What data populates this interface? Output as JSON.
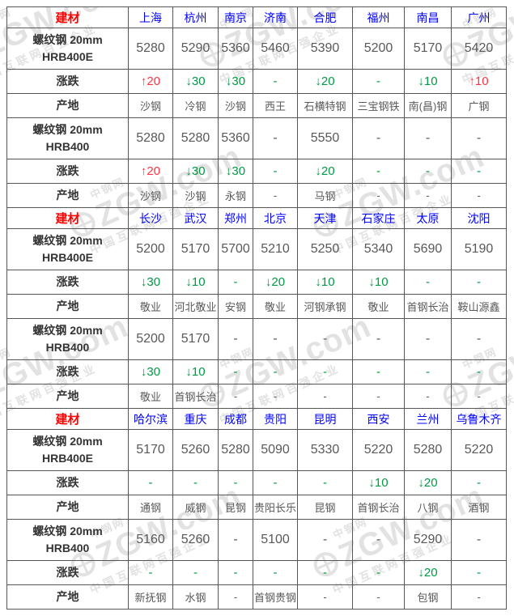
{
  "watermark": {
    "brand": "ZGW.com",
    "site": "中钢网",
    "slogan": "中国互联网百强企业"
  },
  "colors": {
    "up_change": "#ff3344",
    "down_change": "#009944",
    "city_header": "#0000ff",
    "material_header": "#ff0000",
    "value_text": "#595959",
    "border": "#565656"
  },
  "chart_data": {
    "type": "table",
    "material_column_header": "建材",
    "sections": [
      {
        "material_label": "建材",
        "cities": [
          "上海",
          "杭州",
          "南京",
          "济南",
          "合肥",
          "福州",
          "南昌",
          "广州"
        ],
        "rows": [
          {
            "label": "螺纹钢 20mm\nHRB400E",
            "type": "price",
            "values": [
              "5280",
              "5290",
              "5360",
              "5460",
              "5390",
              "5200",
              "5170",
              "5420"
            ]
          },
          {
            "label": "涨跌",
            "type": "change",
            "values": [
              "↑20",
              "↓30",
              "↓30",
              "-",
              "↓20",
              "-",
              "↓10",
              "↑10"
            ]
          },
          {
            "label": "产地",
            "type": "origin",
            "values": [
              "沙钢",
              "冷钢",
              "沙钢",
              "西王",
              "石横特钢",
              "三宝钢铁",
              "南(昌)钢",
              "广钢"
            ]
          },
          {
            "label": "螺纹钢 20mm\nHRB400",
            "type": "price",
            "values": [
              "5280",
              "5280",
              "5360",
              "-",
              "5550",
              "-",
              "-",
              "-"
            ]
          },
          {
            "label": "涨跌",
            "type": "change",
            "values": [
              "↑20",
              "↓30",
              "↓30",
              "-",
              "↓20",
              "-",
              "-",
              "-"
            ]
          },
          {
            "label": "产地",
            "type": "origin",
            "values": [
              "沙钢",
              "沙钢",
              "永钢",
              "-",
              "马钢",
              "-",
              "-",
              "-"
            ]
          }
        ]
      },
      {
        "material_label": "建材",
        "cities": [
          "长沙",
          "武汉",
          "郑州",
          "北京",
          "天津",
          "石家庄",
          "太原",
          "沈阳"
        ],
        "rows": [
          {
            "label": "螺纹钢 20mm\nHRB400E",
            "type": "price",
            "values": [
              "5200",
              "5170",
              "5700",
              "5210",
              "5250",
              "5340",
              "5690",
              "5190"
            ]
          },
          {
            "label": "涨跌",
            "type": "change",
            "values": [
              "↓30",
              "↓10",
              "-",
              "↓20",
              "↓10",
              "↓10",
              "-",
              "-"
            ]
          },
          {
            "label": "产地",
            "type": "origin",
            "values": [
              "敬业",
              "河北敬业",
              "安钢",
              "敬业",
              "河钢承钢",
              "敬业",
              "首钢长治",
              "鞍山源鑫"
            ]
          },
          {
            "label": "螺纹钢 20mm\nHRB400",
            "type": "price",
            "values": [
              "5200",
              "5170",
              "-",
              "-",
              "-",
              "-",
              "-",
              "-"
            ]
          },
          {
            "label": "涨跌",
            "type": "change",
            "values": [
              "↓30",
              "↓10",
              "-",
              "-",
              "-",
              "-",
              "-",
              "-"
            ]
          },
          {
            "label": "产地",
            "type": "origin",
            "values": [
              "敬业",
              "首钢长治",
              "-",
              "-",
              "-",
              "-",
              "-",
              "-"
            ]
          }
        ]
      },
      {
        "material_label": "建材",
        "cities": [
          "哈尔滨",
          "重庆",
          "成都",
          "贵阳",
          "昆明",
          "西安",
          "兰州",
          "乌鲁木齐"
        ],
        "rows": [
          {
            "label": "螺纹钢 20mm\nHRB400E",
            "type": "price",
            "values": [
              "5170",
              "5260",
              "5280",
              "5090",
              "5330",
              "5220",
              "5280",
              "5220"
            ]
          },
          {
            "label": "涨跌",
            "type": "change",
            "values": [
              "-",
              "-",
              "-",
              "-",
              "-",
              "↓10",
              "↓20",
              "-"
            ]
          },
          {
            "label": "产地",
            "type": "origin",
            "values": [
              "通钢",
              "威钢",
              "昆钢",
              "贵阳长乐",
              "昆钢",
              "首钢长治",
              "八钢",
              "酒钢"
            ]
          },
          {
            "label": "螺纹钢 20mm\nHRB400",
            "type": "price",
            "values": [
              "5160",
              "5260",
              "-",
              "5100",
              "-",
              "-",
              "5290",
              "-"
            ]
          },
          {
            "label": "涨跌",
            "type": "change",
            "values": [
              "-",
              "-",
              "-",
              "-",
              "-",
              "-",
              "↓20",
              "-"
            ]
          },
          {
            "label": "产地",
            "type": "origin",
            "values": [
              "新抚钢",
              "水钢",
              "-",
              "首钢贵钢",
              "-",
              "-",
              "包钢",
              "-"
            ]
          }
        ]
      }
    ]
  }
}
